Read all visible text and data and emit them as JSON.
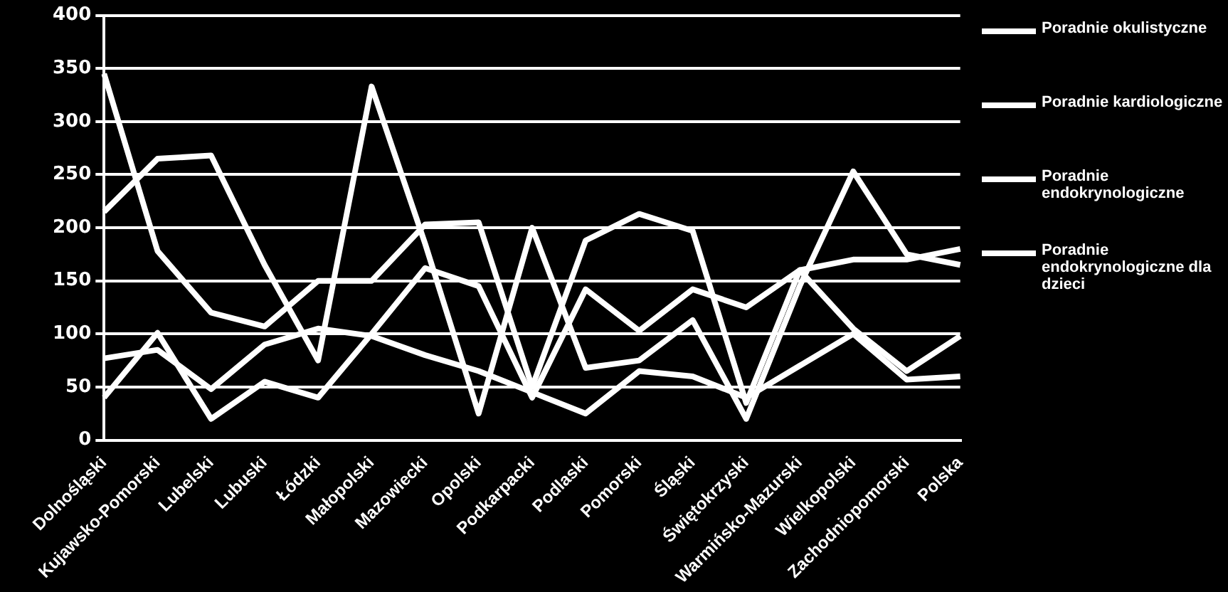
{
  "chart_data": {
    "type": "line",
    "categories": [
      "Dolnośląski",
      "Kujawsko-Pomorski",
      "Lubelski",
      "Lubuski",
      "Łódzki",
      "Małopolski",
      "Mazowiecki",
      "Opolski",
      "Podkarpacki",
      "Podlaski",
      "Pomorski",
      "Śląski",
      "Świętokrzyski",
      "Warmińsko-Mazurski",
      "Wielkopolski",
      "Zachodniopomorski",
      "Polska"
    ],
    "series": [
      {
        "name": "Poradnie okulistyczne",
        "color": "#ffffff",
        "values": [
          345,
          178,
          120,
          107,
          150,
          150,
          203,
          205,
          50,
          188,
          213,
          197,
          35,
          160,
          170,
          170,
          180
        ]
      },
      {
        "name": "Poradnie kardiologiczne",
        "color": "#ffffff",
        "values": [
          215,
          265,
          268,
          165,
          75,
          333,
          185,
          25,
          200,
          68,
          75,
          113,
          20,
          145,
          253,
          175,
          165
        ]
      },
      {
        "name": "Poradnie endokrynologiczne",
        "color": "#ffffff",
        "values": [
          77,
          85,
          48,
          90,
          105,
          98,
          80,
          65,
          45,
          25,
          65,
          60,
          40,
          70,
          100,
          57,
          60
        ]
      },
      {
        "name": "Poradnie endokrynologiczne dla dzieci",
        "color": "#ffffff",
        "values": [
          40,
          101,
          20,
          55,
          40,
          100,
          162,
          145,
          40,
          142,
          103,
          142,
          125,
          160,
          105,
          65,
          98
        ]
      }
    ],
    "ylim": [
      0,
      400
    ],
    "yticks": [
      0,
      50,
      100,
      150,
      200,
      250,
      300,
      350,
      400
    ],
    "grid": "y",
    "legend": "right",
    "marker": "none",
    "line_style": "solid"
  }
}
